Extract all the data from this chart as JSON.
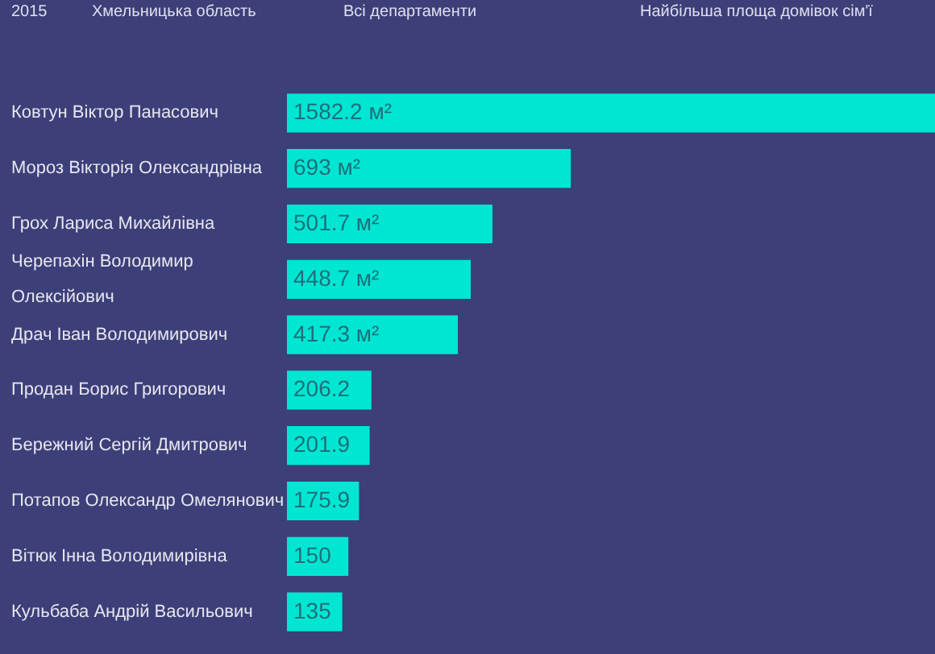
{
  "chart_data": {
    "type": "bar",
    "orientation": "horizontal",
    "color": "#00e6d2",
    "annotations": [
      "2015",
      "Хмельницька область",
      "Всі департаменти",
      "Найбільша площа домівок сім'ї"
    ],
    "categories": [
      "Ковтун Віктор Панасович",
      "Мороз Вікторія Олександрівна",
      "Грох Лариса Михайлівна",
      "Черепахін Володимир Олексійович",
      "Драч Іван Володимирович",
      "Продан Борис Григорович",
      "Бережний Сергій Дмитрович",
      "Потапов Олександр Омелянович",
      "Вітюк Інна Володимирівна",
      "Кульбаба Андрій Васильович"
    ],
    "values": [
      1582.2,
      693,
      501.7,
      448.7,
      417.3,
      206.2,
      201.9,
      175.9,
      150,
      135
    ],
    "value_labels": [
      "1582.2 м²",
      "693 м²",
      "501.7 м²",
      "448.7 м²",
      "417.3 м²",
      "206.2",
      "201.9",
      "175.9",
      "150",
      "135"
    ]
  }
}
